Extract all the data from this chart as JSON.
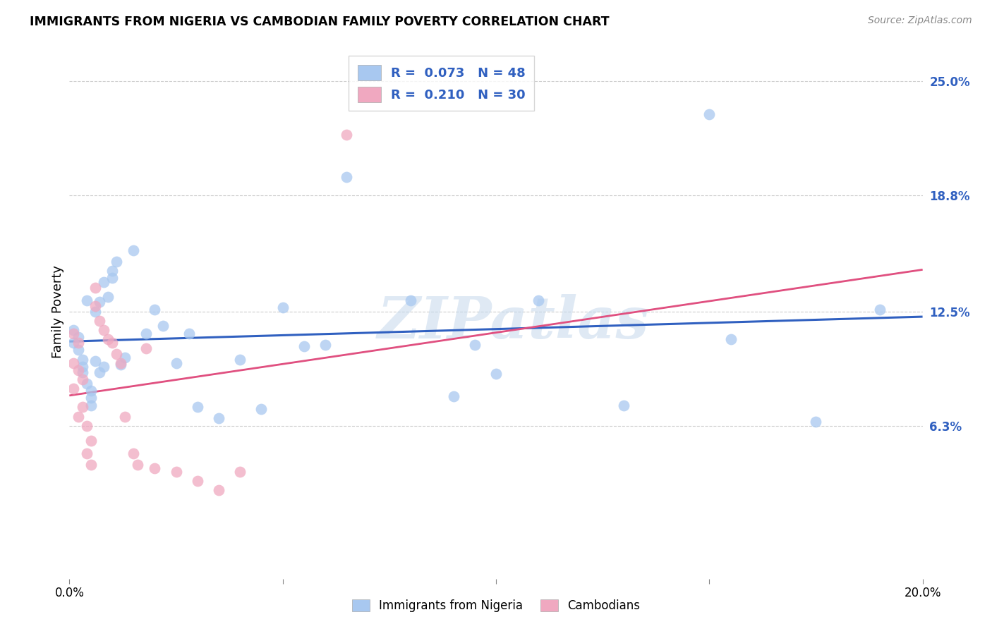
{
  "title": "IMMIGRANTS FROM NIGERIA VS CAMBODIAN FAMILY POVERTY CORRELATION CHART",
  "source": "Source: ZipAtlas.com",
  "ylabel_label": "Family Poverty",
  "legend_labels": [
    "Immigrants from Nigeria",
    "Cambodians"
  ],
  "xlim": [
    0,
    0.2
  ],
  "ylim": [
    -0.02,
    0.27
  ],
  "ytick_vals": [
    0.063,
    0.125,
    0.188,
    0.25
  ],
  "ytick_labels": [
    "6.3%",
    "12.5%",
    "18.8%",
    "25.0%"
  ],
  "xtick_vals": [
    0.0,
    0.05,
    0.1,
    0.15,
    0.2
  ],
  "xtick_labels": [
    "0.0%",
    "",
    "",
    "",
    "20.0%"
  ],
  "nigeria_R": 0.073,
  "nigeria_N": 48,
  "cambodian_R": 0.21,
  "cambodian_N": 30,
  "nigeria_color": "#A8C8F0",
  "cambodian_color": "#F0A8C0",
  "nigeria_line_color": "#3060C0",
  "cambodian_line_color": "#E05080",
  "nigeria_scatter_x": [
    0.001,
    0.001,
    0.002,
    0.002,
    0.003,
    0.003,
    0.003,
    0.004,
    0.004,
    0.005,
    0.005,
    0.005,
    0.006,
    0.006,
    0.007,
    0.007,
    0.008,
    0.008,
    0.009,
    0.01,
    0.01,
    0.011,
    0.012,
    0.013,
    0.015,
    0.018,
    0.02,
    0.022,
    0.025,
    0.028,
    0.03,
    0.035,
    0.04,
    0.045,
    0.05,
    0.055,
    0.06,
    0.065,
    0.08,
    0.09,
    0.095,
    0.1,
    0.11,
    0.13,
    0.15,
    0.155,
    0.175,
    0.19
  ],
  "nigeria_scatter_y": [
    0.108,
    0.115,
    0.104,
    0.111,
    0.099,
    0.095,
    0.092,
    0.086,
    0.131,
    0.082,
    0.078,
    0.074,
    0.098,
    0.125,
    0.092,
    0.13,
    0.095,
    0.141,
    0.133,
    0.143,
    0.147,
    0.152,
    0.096,
    0.1,
    0.158,
    0.113,
    0.126,
    0.117,
    0.097,
    0.113,
    0.073,
    0.067,
    0.099,
    0.072,
    0.127,
    0.106,
    0.107,
    0.198,
    0.131,
    0.079,
    0.107,
    0.091,
    0.131,
    0.074,
    0.232,
    0.11,
    0.065,
    0.126
  ],
  "cambodian_scatter_x": [
    0.001,
    0.001,
    0.001,
    0.002,
    0.002,
    0.002,
    0.003,
    0.003,
    0.004,
    0.004,
    0.005,
    0.005,
    0.006,
    0.006,
    0.007,
    0.008,
    0.009,
    0.01,
    0.011,
    0.012,
    0.013,
    0.015,
    0.016,
    0.018,
    0.02,
    0.025,
    0.03,
    0.035,
    0.04,
    0.065
  ],
  "cambodian_scatter_y": [
    0.113,
    0.097,
    0.083,
    0.108,
    0.093,
    0.068,
    0.088,
    0.073,
    0.063,
    0.048,
    0.055,
    0.042,
    0.138,
    0.128,
    0.12,
    0.115,
    0.11,
    0.108,
    0.102,
    0.097,
    0.068,
    0.048,
    0.042,
    0.105,
    0.04,
    0.038,
    0.033,
    0.028,
    0.038,
    0.221
  ],
  "watermark_text": "ZIPatlas",
  "background_color": "#FFFFFF",
  "grid_color": "#CCCCCC"
}
